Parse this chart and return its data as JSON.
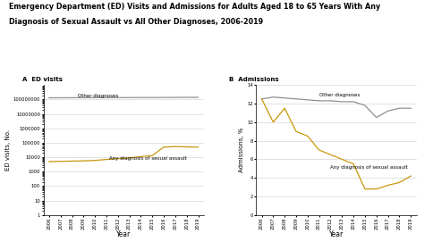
{
  "title_line1": "Emergency Department (ED) Visits and Admissions for Adults Aged 18 to 65 Years With Any",
  "title_line2": "Diagnosis of Sexual Assault vs All Other Diagnoses, 2006-2019",
  "years": [
    2006,
    2007,
    2008,
    2009,
    2010,
    2011,
    2012,
    2013,
    2014,
    2015,
    2016,
    2017,
    2018,
    2019
  ],
  "panel_a_label": "A  ED visits",
  "panel_b_label": "B  Admissions",
  "ed_other": [
    130000000,
    131000000,
    132000000,
    133000000,
    133500000,
    134000000,
    134500000,
    135000000,
    135500000,
    136000000,
    137000000,
    138000000,
    139000000,
    139500000
  ],
  "ed_sexual": [
    5000,
    5200,
    5400,
    5600,
    6000,
    7000,
    8000,
    9000,
    11000,
    13000,
    50000,
    55000,
    52000,
    50000
  ],
  "adm_other": [
    12.5,
    12.7,
    12.6,
    12.5,
    12.4,
    12.3,
    12.3,
    12.2,
    12.2,
    11.8,
    10.5,
    11.2,
    11.5,
    11.5
  ],
  "adm_sexual": [
    12.5,
    10.0,
    11.5,
    9.0,
    8.5,
    7.0,
    6.5,
    6.0,
    5.5,
    2.8,
    2.8,
    3.2,
    3.5,
    4.2
  ],
  "color_other": "#909090",
  "color_sexual": "#C8960C",
  "background": "#ffffff",
  "ylabel_a": "ED visits, No.",
  "ylabel_b": "Admissions, %",
  "xlabel": "Year",
  "ylim_b": [
    0,
    14
  ],
  "yticks_b": [
    0,
    2,
    4,
    6,
    8,
    10,
    12,
    14
  ],
  "log_yticks": [
    1,
    10,
    100,
    1000,
    10000,
    100000,
    1000000,
    10000000,
    100000000
  ],
  "log_ytick_labels": [
    "1",
    "10",
    "100",
    "1000",
    "10000",
    "100000",
    "1000000",
    "10000000",
    "100000000"
  ]
}
